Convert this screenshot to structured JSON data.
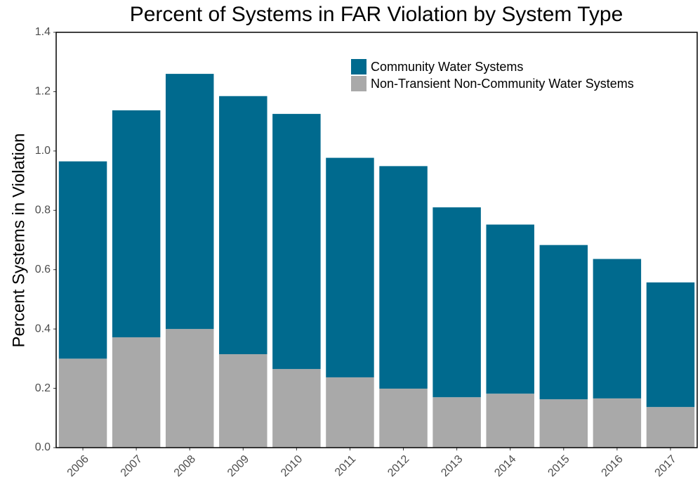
{
  "chart_data": {
    "type": "stacked_bar",
    "title": "Percent of Systems in FAR Violation by System Type",
    "ylabel": "Percent Systems in Violation",
    "categories": [
      "2006",
      "2007",
      "2008",
      "2009",
      "2010",
      "2011",
      "2012",
      "2013",
      "2014",
      "2015",
      "2016",
      "2017"
    ],
    "series": [
      {
        "name": "Community Water Systems",
        "color": "#006a8e",
        "values": [
          0.665,
          0.765,
          0.86,
          0.87,
          0.86,
          0.74,
          0.75,
          0.64,
          0.57,
          0.52,
          0.47,
          0.42
        ]
      },
      {
        "name": "Non-Transient Non-Community Water Systems",
        "color": "#a9a9a9",
        "values": [
          0.3,
          0.372,
          0.4,
          0.315,
          0.265,
          0.237,
          0.199,
          0.17,
          0.182,
          0.163,
          0.166,
          0.137
        ]
      }
    ],
    "ylim": [
      0,
      1.4
    ],
    "yticks": [
      {
        "value": 0,
        "label": "0.0"
      },
      0.2,
      0.4,
      0.6,
      0.8,
      {
        "value": 1,
        "label": "1.0"
      },
      1.2,
      1.4
    ],
    "grid": false,
    "legend": "top-right"
  }
}
